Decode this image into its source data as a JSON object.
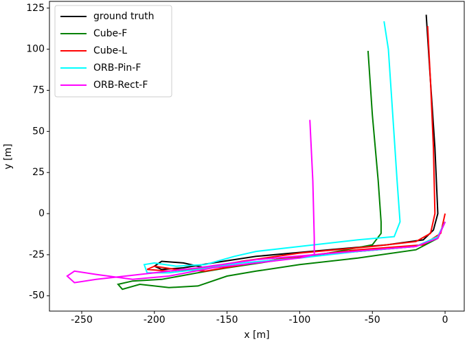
{
  "chart_data": {
    "type": "line",
    "xlabel": "x [m]",
    "ylabel": "y [m]",
    "xlim": [
      -272.2,
      13.2
    ],
    "ylim": [
      -59.3,
      129.1
    ],
    "xticks": [
      -250,
      -200,
      -150,
      -100,
      -50,
      0
    ],
    "yticks": [
      -50,
      -25,
      0,
      25,
      50,
      75,
      100,
      125
    ],
    "legend": "upper left",
    "series": [
      {
        "name": "ground truth",
        "color": "#000000",
        "x": [
          0,
          -5,
          -20,
          -60,
          -110,
          -145,
          -165,
          -180,
          -195,
          -200,
          -195,
          -180,
          -160,
          -130,
          -80,
          -40,
          -15,
          -8,
          -5,
          -7,
          -10,
          -13
        ],
        "values": [
          -5,
          -14,
          -20,
          -23,
          -27,
          -32,
          -33,
          -30,
          -29,
          -32,
          -34,
          -33,
          -30,
          -26,
          -22,
          -19,
          -16,
          -10,
          0,
          40,
          80,
          121
        ]
      },
      {
        "name": "Cube-F",
        "color": "#008000",
        "x": [
          0,
          -5,
          -20,
          -60,
          -100,
          -130,
          -150,
          -170,
          -190,
          -210,
          -222,
          -225,
          -215,
          -195,
          -170,
          -150,
          -120,
          -80,
          -50,
          -44,
          -44,
          -46,
          -50,
          -53
        ],
        "values": [
          -5,
          -15,
          -22,
          -27,
          -31,
          -35,
          -38,
          -44,
          -45,
          -43,
          -46,
          -43,
          -41,
          -40,
          -36,
          -33,
          -29,
          -24,
          -19,
          -12,
          -5,
          20,
          60,
          99
        ]
      },
      {
        "name": "Cube-L",
        "color": "#ff0000",
        "x": [
          0,
          -3,
          -15,
          -60,
          -110,
          -145,
          -165,
          -185,
          -200,
          -205,
          -190,
          -165,
          -140,
          -100,
          -50,
          -20,
          -10,
          -7,
          -8,
          -10,
          -12
        ],
        "values": [
          0,
          -12,
          -19,
          -22,
          -27,
          -32,
          -35,
          -34,
          -32,
          -34,
          -35,
          -33,
          -29,
          -24,
          -20,
          -17,
          -12,
          0,
          40,
          80,
          114
        ]
      },
      {
        "name": "ORB-Pin-F",
        "color": "#00ffff",
        "x": [
          0,
          -5,
          -20,
          -60,
          -100,
          -140,
          -170,
          -190,
          -205,
          -207,
          -200,
          -185,
          -165,
          -145,
          -130,
          -100,
          -60,
          -35,
          -31,
          -33,
          -36,
          -39,
          -42
        ],
        "values": [
          -5,
          -14,
          -20,
          -23,
          -27,
          -30,
          -34,
          -36,
          -36,
          -31,
          -30,
          -32,
          -31,
          -26,
          -23,
          -20,
          -16,
          -14,
          -5,
          20,
          60,
          100,
          117
        ]
      },
      {
        "name": "ORB-Rect-F",
        "color": "#ff00ff",
        "x": [
          0,
          -5,
          -20,
          -50,
          -90,
          -130,
          -170,
          -200,
          -220,
          -240,
          -255,
          -260,
          -255,
          -240,
          -215,
          -190,
          -160,
          -130,
          -100,
          -90,
          -90,
          -91,
          -93
        ],
        "values": [
          -5,
          -15,
          -20,
          -22,
          -25,
          -28,
          -33,
          -36,
          -38,
          -40,
          -42,
          -38,
          -35,
          -37,
          -40,
          -38,
          -33,
          -30,
          -27,
          -25,
          -15,
          20,
          57
        ]
      }
    ]
  }
}
